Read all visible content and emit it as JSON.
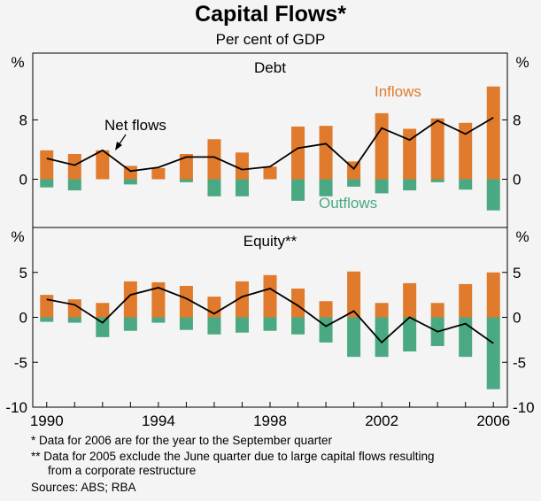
{
  "title": "Capital Flows*",
  "subtitle": "Per cent of GDP",
  "footnotes": [
    "*  Data for 2006 are for the year to the September quarter",
    "** Data for 2005 exclude the June quarter due to large capital flows resulting",
    "from a corporate restructure"
  ],
  "sources": "Sources: ABS; RBA",
  "colors": {
    "inflows": "#e07a2c",
    "outflows": "#4aa982",
    "net": "#000000",
    "background": "#f4f4f4"
  },
  "chart_data": [
    {
      "type": "bar",
      "title": "Debt",
      "unit_label": "%",
      "categories": [
        "1990",
        "1991",
        "1992",
        "1993",
        "1994",
        "1995",
        "1996",
        "1997",
        "1998",
        "1999",
        "2000",
        "2001",
        "2002",
        "2003",
        "2004",
        "2005",
        "2006"
      ],
      "ylim": [
        -6.5,
        17
      ],
      "yticks": [
        "8",
        "0"
      ],
      "ytick_values": [
        8,
        0
      ],
      "series": [
        {
          "name": "Inflows",
          "values": [
            3.9,
            3.4,
            3.9,
            1.8,
            1.5,
            3.4,
            5.4,
            3.6,
            1.7,
            7.1,
            7.2,
            2.4,
            8.9,
            6.8,
            8.2,
            7.6,
            12.5
          ]
        },
        {
          "name": "Outflows",
          "values": [
            -1.1,
            -1.5,
            0,
            -0.7,
            0,
            -0.4,
            -2.3,
            -2.3,
            0,
            -2.9,
            -2.3,
            -1.0,
            -1.9,
            -1.5,
            -0.4,
            -1.4,
            -4.2
          ]
        },
        {
          "name": "Net flows",
          "values": [
            2.8,
            1.9,
            3.9,
            1.1,
            1.6,
            3.0,
            3.0,
            1.3,
            1.7,
            4.2,
            4.8,
            1.4,
            6.9,
            5.3,
            7.9,
            6.1,
            8.3
          ]
        }
      ],
      "annotations": [
        "Net flows",
        "Inflows",
        "Outflows"
      ]
    },
    {
      "type": "bar",
      "title": "Equity**",
      "unit_label": "%",
      "categories": [
        "1990",
        "1991",
        "1992",
        "1993",
        "1994",
        "1995",
        "1996",
        "1997",
        "1998",
        "1999",
        "2000",
        "2001",
        "2002",
        "2003",
        "2004",
        "2005",
        "2006"
      ],
      "ylim": [
        -10,
        10
      ],
      "yticks": [
        "5",
        "0",
        "-5",
        "-10"
      ],
      "ytick_values": [
        5,
        0,
        -5,
        -10
      ],
      "series": [
        {
          "name": "Inflows",
          "values": [
            2.5,
            2.0,
            1.6,
            4.0,
            3.9,
            3.5,
            2.3,
            4.0,
            4.7,
            3.2,
            1.8,
            5.1,
            1.6,
            3.8,
            1.6,
            3.7,
            5.0
          ]
        },
        {
          "name": "Outflows",
          "values": [
            -0.5,
            -0.6,
            -2.2,
            -1.5,
            -0.6,
            -1.4,
            -1.9,
            -1.7,
            -1.5,
            -1.9,
            -2.8,
            -4.4,
            -4.4,
            -3.8,
            -3.2,
            -4.4,
            -8.0
          ]
        },
        {
          "name": "Net flows",
          "values": [
            2.0,
            1.4,
            -0.6,
            2.5,
            3.3,
            2.1,
            0.4,
            2.3,
            3.2,
            1.3,
            -1.0,
            0.7,
            -2.8,
            0.0,
            -1.6,
            -0.7,
            -2.9
          ]
        }
      ],
      "x_tick_labels": [
        "1990",
        "1994",
        "1998",
        "2002",
        "2006"
      ]
    }
  ]
}
